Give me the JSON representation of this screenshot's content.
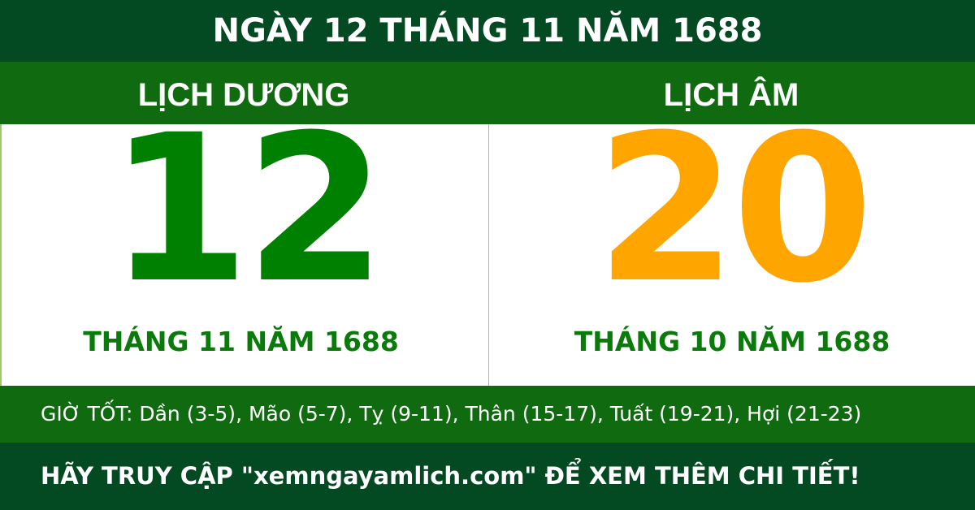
{
  "title": "NGÀY 12 THÁNG 11 NĂM 1688",
  "solar": {
    "label": "LỊCH DƯƠNG",
    "day": "12",
    "month_year": "THÁNG 11 NĂM 1688"
  },
  "lunar": {
    "label": "LỊCH ÂM",
    "day": "20",
    "month_year": "THÁNG 10 NĂM 1688"
  },
  "good_hours": "GIỜ TỐT: Dần (3-5), Mão (5-7), Tỵ (9-11), Thân (15-17), Tuất (19-21), Hợi (21-23)",
  "footer": "HÃY TRUY CẬP \"xemngayamlich.com\" ĐỂ XEM THÊM CHI TIẾT!",
  "colors": {
    "dark_green": "#034a22",
    "green": "#106b10",
    "solar_day": "#008000",
    "lunar_day": "#ffa500"
  }
}
